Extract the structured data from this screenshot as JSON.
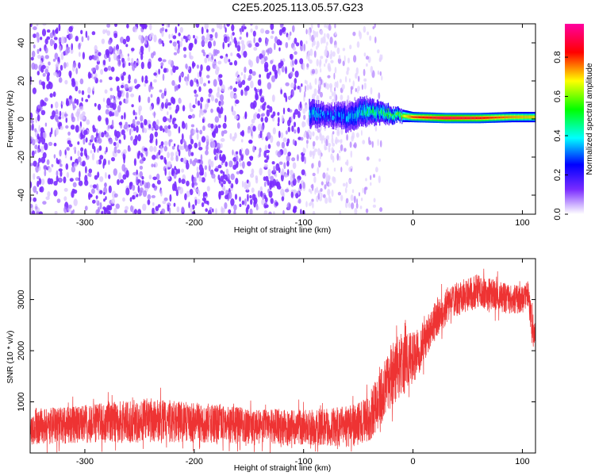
{
  "title": "C2E5.2025.113.05.57.G23",
  "chart_data": [
    {
      "type": "heatmap",
      "xlabel": "Height of straight line (km)",
      "ylabel": "Frequency (Hz)",
      "xlim": [
        -350,
        112
      ],
      "ylim": [
        -50,
        50
      ],
      "xticks": [
        -300,
        -200,
        -100,
        0,
        100
      ],
      "yticks": [
        -40,
        -20,
        0,
        20,
        40
      ],
      "colorbar": {
        "label": "Normalized spectral amplitude",
        "range": [
          0,
          0.97
        ],
        "ticks": [
          0.0,
          0.2,
          0.4,
          0.6,
          0.8
        ],
        "colormap": [
          "#ffffff",
          "#7a2cff",
          "#0000ff",
          "#00ffff",
          "#00ff00",
          "#ffff00",
          "#ff0000",
          "#ff00a0"
        ]
      },
      "noise_region": {
        "x": [
          -350,
          -100
        ],
        "amplitude": 0.2,
        "dot_color": "#7a2cff"
      },
      "fading_region": {
        "x": [
          -100,
          -28
        ],
        "amplitude": 0.08
      },
      "signal_band": [
        {
          "x": -95,
          "y": 3,
          "width": 4,
          "amplitude": 0.35
        },
        {
          "x": -80,
          "y": 2,
          "width": 3,
          "amplitude": 0.3
        },
        {
          "x": -60,
          "y": 1,
          "width": 4,
          "amplitude": 0.32
        },
        {
          "x": -45,
          "y": 4,
          "width": 4,
          "amplitude": 0.4
        },
        {
          "x": -30,
          "y": 3,
          "width": 3,
          "amplitude": 0.45
        },
        {
          "x": -15,
          "y": 2,
          "width": 2,
          "amplitude": 0.55
        },
        {
          "x": 0,
          "y": 1,
          "width": 1.5,
          "amplitude": 0.8
        },
        {
          "x": 30,
          "y": 0.5,
          "width": 1.5,
          "amplitude": 0.9
        },
        {
          "x": 60,
          "y": 0.5,
          "width": 1.5,
          "amplitude": 0.85
        },
        {
          "x": 90,
          "y": 1,
          "width": 1.5,
          "amplitude": 0.75
        },
        {
          "x": 112,
          "y": 1,
          "width": 1.5,
          "amplitude": 0.7
        }
      ]
    },
    {
      "type": "line",
      "xlabel": "Height of straight line (km)",
      "ylabel": "SNR (10 * v/v)",
      "xlim": [
        -350,
        112
      ],
      "ylim": [
        0,
        3800
      ],
      "xticks": [
        -300,
        -200,
        -100,
        0,
        100
      ],
      "yticks": [
        1000,
        2000,
        3000
      ],
      "color": "#ee3333",
      "series": [
        {
          "x": [
            -350,
            -320,
            -300,
            -280,
            -260,
            -240,
            -220,
            -200,
            -180,
            -160,
            -140,
            -120,
            -100,
            -80,
            -60,
            -50,
            -40,
            -30,
            -20,
            -10,
            0,
            10,
            20,
            30,
            40,
            50,
            60,
            70,
            80,
            90,
            100,
            105,
            110,
            112
          ],
          "values": [
            520,
            540,
            560,
            600,
            620,
            640,
            620,
            600,
            570,
            540,
            520,
            520,
            500,
            500,
            520,
            560,
            700,
            1050,
            1500,
            1700,
            1850,
            2150,
            2550,
            2850,
            3000,
            3100,
            3150,
            3100,
            3050,
            3000,
            3000,
            3100,
            2350,
            2300
          ],
          "spread": [
            400,
            400,
            420,
            450,
            470,
            480,
            460,
            440,
            420,
            400,
            380,
            380,
            380,
            400,
            450,
            480,
            520,
            600,
            700,
            650,
            600,
            450,
            420,
            400,
            380,
            380,
            380,
            360,
            340,
            320,
            300,
            300,
            350,
            300
          ]
        }
      ]
    }
  ]
}
